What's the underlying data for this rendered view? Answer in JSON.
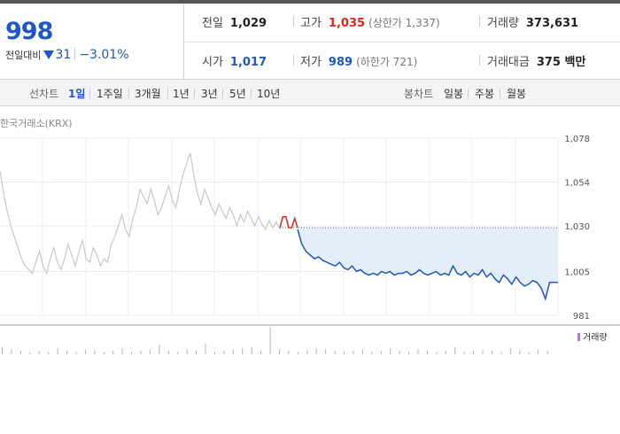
{
  "quote": {
    "price": "998",
    "change_label": "전일대비",
    "change_value": "31",
    "change_percent": "−3.01%",
    "prev_close": {
      "label": "전일",
      "value": "1,029"
    },
    "high": {
      "label": "고가",
      "value": "1,035",
      "sub": "(상한가 1,337)"
    },
    "volume": {
      "label": "거래량",
      "value": "373,631"
    },
    "open": {
      "label": "시가",
      "value": "1,017"
    },
    "low": {
      "label": "저가",
      "value": "989",
      "sub": "(하한가 721)"
    },
    "amount": {
      "label": "거래대금",
      "value": "375 백만"
    }
  },
  "tabs": {
    "line_chart_label": "선차트",
    "periods": [
      "1일",
      "1주일",
      "3개월",
      "1년",
      "3년",
      "5년",
      "10년"
    ],
    "active_period": "1일",
    "candle_chart_label": "봉차트",
    "candles": [
      "일봉",
      "주봉",
      "월봉"
    ]
  },
  "market_label": "한국거래소(KRX)",
  "volume_legend": "거래량",
  "colors": {
    "down": "#1f57c7",
    "up": "#e2231a",
    "history": "#c8c8c8",
    "fill": "#e4eef9"
  },
  "chart_data": {
    "type": "line",
    "ylim": [
      981,
      1078
    ],
    "yticks": [
      "1,078",
      "1,054",
      "1,030",
      "1,005",
      "981"
    ],
    "ytick_values": [
      1078,
      1054,
      1030,
      1005,
      981
    ],
    "reference_level": 1029,
    "series": [
      {
        "values": [
          1060,
          1048,
          1038,
          1030,
          1024,
          1018,
          1012,
          1008,
          1006,
          1004,
          1010,
          1016,
          1008,
          1004,
          1012,
          1018,
          1010,
          1006,
          1012,
          1020,
          1014,
          1008,
          1016,
          1022,
          1012,
          1010,
          1018,
          1014,
          1008,
          1012,
          1010,
          1020,
          1024,
          1030,
          1036,
          1028,
          1024,
          1034,
          1040,
          1050,
          1046,
          1042,
          1050,
          1044,
          1036,
          1040,
          1046,
          1052,
          1044,
          1040,
          1050,
          1058,
          1064,
          1070,
          1058,
          1048,
          1042,
          1050,
          1045,
          1040,
          1036,
          1042,
          1038,
          1034,
          1040,
          1036,
          1030,
          1036,
          1032,
          1038,
          1034,
          1030,
          1035,
          1031,
          1028,
          1033,
          1029,
          1032,
          1028
        ]
      },
      {
        "values": [
          1029,
          1035,
          1035,
          1029,
          1029,
          1034,
          1029
        ]
      },
      {
        "values": [
          1028,
          1020,
          1016,
          1014,
          1012,
          1013,
          1011,
          1010,
          1009,
          1008,
          1010,
          1007,
          1006,
          1008,
          1005,
          1006,
          1004,
          1003,
          1004,
          1003,
          1005,
          1004,
          1005,
          1003,
          1004,
          1004,
          1005,
          1003,
          1004,
          1006,
          1004,
          1003,
          1004,
          1005,
          1003,
          1004,
          1003,
          1008,
          1004,
          1003,
          1005,
          1002,
          1004,
          1003,
          1006,
          1002,
          1004,
          1001,
          999,
          1003,
          1001,
          998,
          1002,
          999,
          997,
          998,
          1000,
          999,
          996,
          990,
          999,
          999,
          999
        ]
      }
    ],
    "volume": [
      6,
      4,
      3,
      2,
      3,
      2,
      5,
      3,
      2,
      4,
      3,
      2,
      3,
      5,
      2,
      3,
      4,
      8,
      3,
      2,
      4,
      3,
      9,
      2,
      3,
      4,
      5,
      6,
      3,
      22,
      4,
      3,
      2,
      3,
      5,
      4,
      3,
      2,
      3,
      4,
      2,
      3,
      5,
      3,
      2,
      4,
      3,
      2,
      3,
      6,
      2,
      3,
      4,
      3,
      2,
      5,
      3,
      2,
      4,
      3
    ]
  }
}
